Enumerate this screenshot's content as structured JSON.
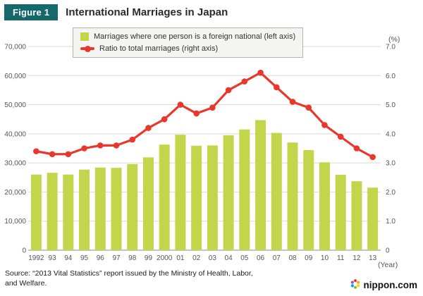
{
  "header": {
    "figure_label": "Figure 1",
    "title": "International Marriages in Japan"
  },
  "legend": {
    "bar_label": "Marriages where one person is a foreign national (left axis)",
    "line_label": "Ratio to total marriages (right axis)"
  },
  "axes": {
    "right_unit": "(%)",
    "x_unit": "(Year)",
    "left_ticks": [
      "70,000",
      "60,000",
      "50,000",
      "40,000",
      "30,000",
      "20,000",
      "10,000",
      "0"
    ],
    "right_ticks": [
      "7.0",
      "6.0",
      "5.0",
      "4.0",
      "3.0",
      "2.0",
      "1.0",
      "0"
    ]
  },
  "chart_data": {
    "type": "bar",
    "title": "International Marriages in Japan",
    "categories": [
      "1992",
      "93",
      "94",
      "95",
      "96",
      "97",
      "98",
      "99",
      "2000",
      "01",
      "02",
      "03",
      "04",
      "05",
      "06",
      "07",
      "08",
      "09",
      "10",
      "11",
      "12",
      "13"
    ],
    "series": [
      {
        "name": "Marriages where one person is a foreign national",
        "type": "bar",
        "axis": "left",
        "values": [
          26000,
          26600,
          26000,
          27700,
          28400,
          28300,
          29600,
          31900,
          36300,
          39700,
          35900,
          36000,
          39500,
          41500,
          44700,
          40300,
          37000,
          34400,
          30200,
          25900,
          23700,
          21500
        ]
      },
      {
        "name": "Ratio to total marriages",
        "type": "line",
        "axis": "right",
        "values": [
          3.4,
          3.3,
          3.3,
          3.5,
          3.6,
          3.6,
          3.8,
          4.2,
          4.5,
          5.0,
          4.7,
          4.9,
          5.5,
          5.8,
          6.1,
          5.6,
          5.1,
          4.9,
          4.3,
          3.9,
          3.5,
          3.2
        ]
      }
    ],
    "ylim_left": [
      0,
      70000
    ],
    "ylim_right": [
      0,
      7
    ],
    "xlabel": "(Year)",
    "ylabel_right": "(%)",
    "grid": true,
    "legend_position": "top"
  },
  "source": {
    "line1": "Source: “2013 Vital Statistics” report issued by the Ministry of Health, Labor,",
    "line2": "and Welfare."
  },
  "logo": {
    "text": "nippon.com",
    "dot_colors": [
      "#e8382d",
      "#f5a623",
      "#ffd400",
      "#7ac143",
      "#00a0e9",
      "#9b59b6"
    ]
  },
  "colors": {
    "bar": "#c3d54a",
    "line": "#e8382d",
    "badge_bg": "#15696b",
    "grid": "#d9d9d9",
    "axis": "#8a8a8a",
    "tick_text": "#555555"
  }
}
